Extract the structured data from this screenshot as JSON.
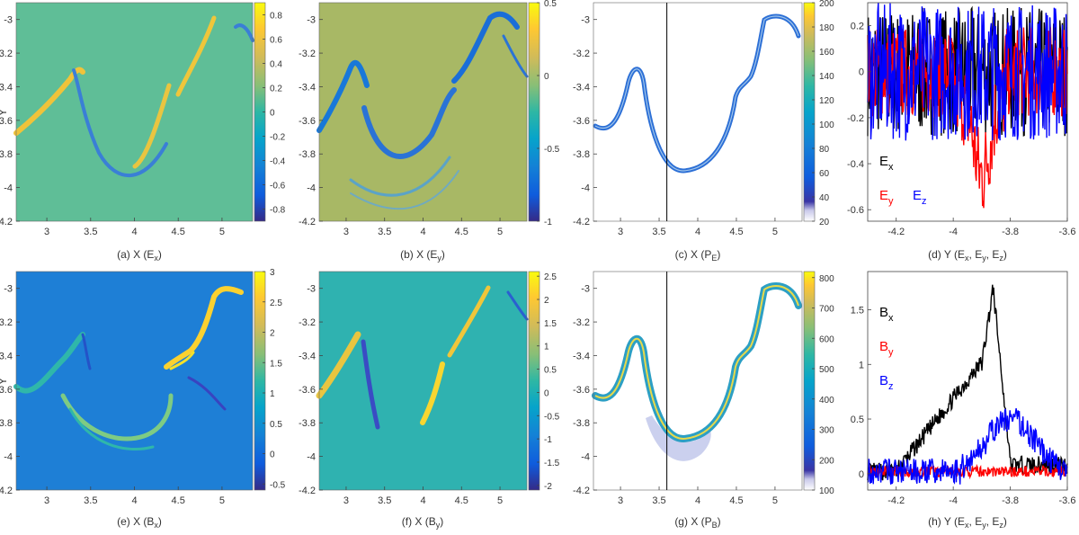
{
  "chart_data": [
    {
      "id": "a",
      "type": "heatmap",
      "caption": "(a) X (E",
      "caption_sub": "x",
      "caption_tail": ")",
      "ylabel": "Y",
      "x_ticks": [
        "3",
        "3.5",
        "4",
        "4.5",
        "5"
      ],
      "xlim": [
        2.65,
        5.35
      ],
      "y_ticks": [
        "-3",
        "-3.2",
        "-3.4",
        "-3.6",
        "-3.8",
        "-4",
        "-4.2"
      ],
      "ylim": [
        -4.2,
        -2.9
      ],
      "colorbar": {
        "ticks": [
          "0.8",
          "0.6",
          "0.4",
          "0.2",
          "0",
          "-0.2",
          "-0.4",
          "-0.6",
          "-0.8"
        ],
        "range": [
          -0.9,
          0.9
        ]
      },
      "background_color": "#5fbe97"
    },
    {
      "id": "b",
      "type": "heatmap",
      "caption": "(b) X (E",
      "caption_sub": "y",
      "caption_tail": ")",
      "x_ticks": [
        "3",
        "3.5",
        "4",
        "4.5",
        "5"
      ],
      "xlim": [
        2.65,
        5.35
      ],
      "y_ticks": [
        "-3",
        "-3.2",
        "-3.4",
        "-3.6",
        "-3.8",
        "-4",
        "-4.2"
      ],
      "ylim": [
        -4.2,
        -2.9
      ],
      "colorbar": {
        "ticks": [
          "0.5",
          "0",
          "-0.5",
          "-1"
        ],
        "range": [
          -1,
          0.5
        ]
      },
      "background_color": "#a8b865"
    },
    {
      "id": "c",
      "type": "heatmap",
      "caption": "(c) X (P",
      "caption_sub": "E",
      "caption_tail": ")",
      "x_ticks": [
        "3",
        "3.5",
        "4",
        "4.5",
        "5"
      ],
      "xlim": [
        2.65,
        5.35
      ],
      "y_ticks": [
        "-3",
        "-3.2",
        "-3.4",
        "-3.6",
        "-3.8",
        "-4",
        "-4.2"
      ],
      "ylim": [
        -4.2,
        -2.9
      ],
      "vline_x": 3.6,
      "colorbar": {
        "ticks": [
          "200",
          "180",
          "160",
          "140",
          "120",
          "100",
          "80",
          "60",
          "40",
          "20"
        ],
        "range": [
          20,
          200
        ]
      },
      "background_color": "#ffffff"
    },
    {
      "id": "d",
      "type": "line",
      "caption": "(d) Y (E",
      "caption_subs": [
        "x",
        "y",
        "z"
      ],
      "x_ticks": [
        "-4.2",
        "-4",
        "-3.8",
        "-3.6"
      ],
      "xlim": [
        -4.3,
        -3.6
      ],
      "y_ticks": [
        "0.2",
        "0",
        "-0.2",
        "-0.4",
        "-0.6"
      ],
      "ylim": [
        -0.65,
        0.3
      ],
      "legend": [
        {
          "name": "E",
          "sub": "x",
          "color": "#000000"
        },
        {
          "name": "E",
          "sub": "y",
          "color": "#ff0000"
        },
        {
          "name": "E",
          "sub": "z",
          "color": "#0000ff"
        }
      ]
    },
    {
      "id": "e",
      "type": "heatmap",
      "caption": "(e) X (B",
      "caption_sub": "x",
      "caption_tail": ")",
      "ylabel": "Y",
      "x_ticks": [
        "3",
        "3.5",
        "4",
        "4.5",
        "5"
      ],
      "xlim": [
        2.65,
        5.35
      ],
      "y_ticks": [
        "-3",
        "-3.2",
        "-3.4",
        "-3.6",
        "-3.8",
        "-4",
        "-4.2"
      ],
      "ylim": [
        -4.2,
        -2.9
      ],
      "colorbar": {
        "ticks": [
          "3",
          "2.5",
          "2",
          "1.5",
          "1",
          "0.5",
          "0",
          "-0.5"
        ],
        "range": [
          -0.6,
          3.0
        ]
      },
      "background_color": "#1e7fd6"
    },
    {
      "id": "f",
      "type": "heatmap",
      "caption": "(f) X (B",
      "caption_sub": "y",
      "caption_tail": ")",
      "x_ticks": [
        "3",
        "3.5",
        "4",
        "4.5",
        "5"
      ],
      "xlim": [
        2.65,
        5.35
      ],
      "y_ticks": [
        "-3",
        "-3.2",
        "-3.4",
        "-3.6",
        "-3.8",
        "-4",
        "-4.2"
      ],
      "ylim": [
        -4.2,
        -2.9
      ],
      "colorbar": {
        "ticks": [
          "2.5",
          "2",
          "1.5",
          "1",
          "0.5",
          "0",
          "-0.5",
          "-1",
          "-1.5",
          "-2"
        ],
        "range": [
          -2.1,
          2.6
        ]
      },
      "background_color": "#2fb2b0"
    },
    {
      "id": "g",
      "type": "heatmap",
      "caption": "(g) X (P",
      "caption_sub": "B",
      "caption_tail": ")",
      "x_ticks": [
        "3",
        "3.5",
        "4",
        "4.5",
        "5"
      ],
      "xlim": [
        2.65,
        5.35
      ],
      "y_ticks": [
        "-3",
        "-3.2",
        "-3.4",
        "-3.6",
        "-3.8",
        "-4",
        "-4.2"
      ],
      "ylim": [
        -4.2,
        -2.9
      ],
      "vline_x": 3.6,
      "colorbar": {
        "ticks": [
          "800",
          "700",
          "600",
          "500",
          "400",
          "300",
          "200",
          "100"
        ],
        "range": [
          100,
          820
        ]
      },
      "background_color": "#ffffff"
    },
    {
      "id": "h",
      "type": "line",
      "caption": "(h) Y (E",
      "caption_subs": [
        "x",
        "y",
        "z"
      ],
      "x_ticks": [
        "-4.2",
        "-4",
        "-3.8",
        "-3.6"
      ],
      "xlim": [
        -4.3,
        -3.6
      ],
      "y_ticks": [
        "1.5",
        "1",
        "0.5",
        "0"
      ],
      "ylim": [
        -0.15,
        1.85
      ],
      "legend": [
        {
          "name": "B",
          "sub": "x",
          "color": "#000000"
        },
        {
          "name": "B",
          "sub": "y",
          "color": "#ff0000"
        },
        {
          "name": "B",
          "sub": "z",
          "color": "#0000ff"
        }
      ]
    }
  ]
}
